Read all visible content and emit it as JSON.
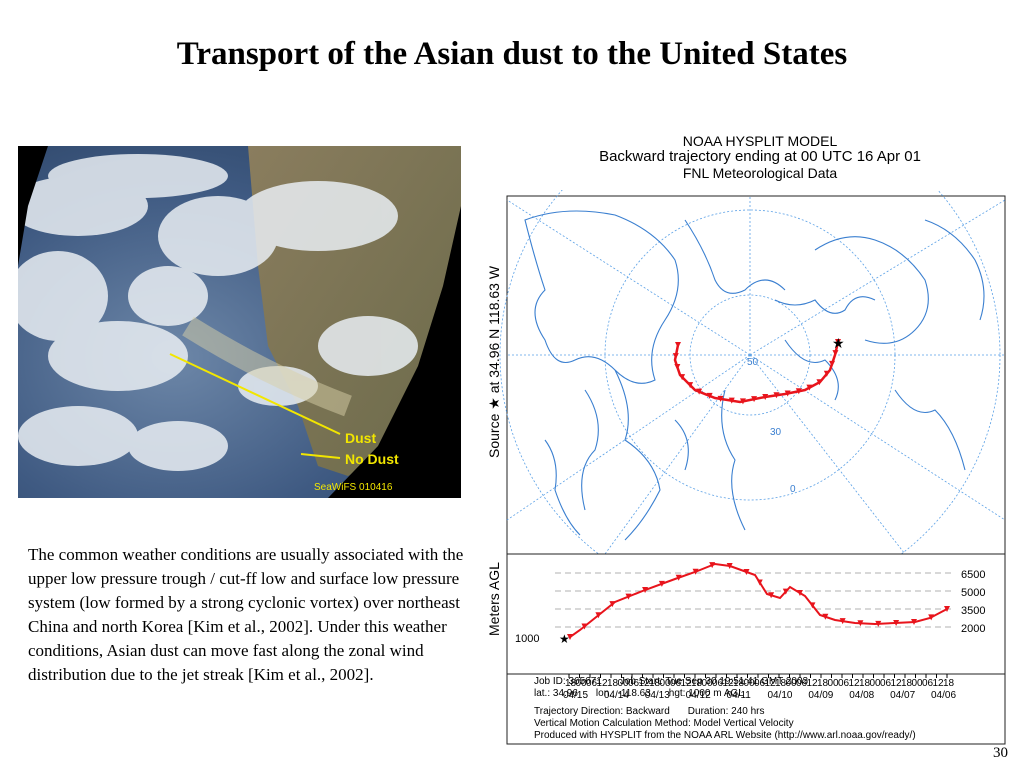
{
  "slide": {
    "title": "Transport of the Asian dust to the United States",
    "page_number": "30",
    "body_text": "The common weather conditions are usually associated with the upper low pressure trough / cut-ff low and surface low pressure system (low formed by a strong cyclonic vortex) over northeast China and north Korea [Kim et al., 2002]. Under this weather conditions, Asian dust can move fast along the zonal wind distribution due to the jet streak [Kim et al., 2002]."
  },
  "satellite": {
    "dust_label": "Dust",
    "no_dust_label": "No Dust",
    "caption": "SeaWiFS 010416",
    "line_color": "#f2e600"
  },
  "hysplit": {
    "title": "NOAA HYSPLIT MODEL",
    "subtitle": "Backward trajectory ending at 00 UTC 16 Apr 01",
    "data_source": "FNL  Meteorological Data",
    "source_label": "Source ★ at   34.96 N  118.63 W",
    "map_latitude_labels": [
      "50",
      "30",
      "0"
    ],
    "height_axis_label": "Meters AGL",
    "height_ticks": [
      "6500",
      "5000",
      "3500",
      "2000"
    ],
    "start_height": "1000",
    "time_ticks": [
      "18",
      "00",
      "06",
      "12"
    ],
    "dates": [
      "04/15",
      "04/14",
      "04/13",
      "04/12",
      "04/11",
      "04/10",
      "04/09",
      "04/08",
      "04/07",
      "04/06"
    ],
    "info": {
      "job_id": "Job ID: 365671",
      "job_start": "Job Start: Tue Sep 30 19:51:41 GMT 2003",
      "lat": "lat.: 34.96",
      "lon": "lon.: -118.63",
      "hgt": "hgt: 1000 m AGL",
      "direction": "Trajectory Direction: Backward",
      "duration": "Duration: 240 hrs",
      "vertical_motion": "Vertical Motion Calculation Method: Model Vertical Velocity",
      "produced": "Produced with HYSPLIT from the NOAA ARL Website (http://www.arl.noaa.gov/ready/)"
    },
    "colors": {
      "trajectory": "#e8141c",
      "map": "#3a7fd0",
      "grid": "#5aa0e6"
    }
  }
}
